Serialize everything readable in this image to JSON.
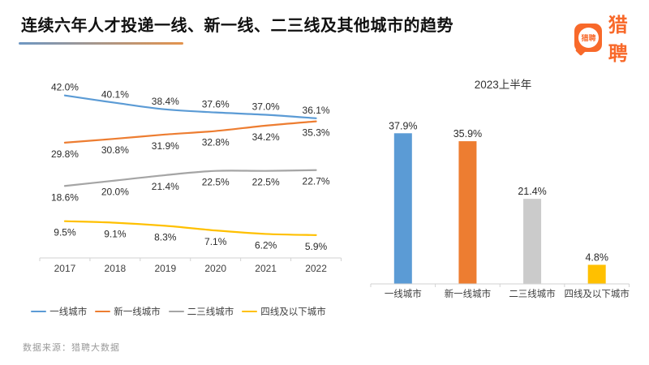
{
  "header": {
    "title": "连续六年人才投递一线、新一线、二三线及其他城市的趋势",
    "underline_gradient": [
      "#6E97C3",
      "#E4944D"
    ],
    "logo": {
      "badge_text": "猎聘",
      "wordmark": "猎聘",
      "brand_color": "#F8692A"
    }
  },
  "chart_data": [
    {
      "type": "line",
      "title": "",
      "xlabel": "",
      "ylabel": "",
      "unit": "%",
      "categories": [
        "2017",
        "2018",
        "2019",
        "2020",
        "2021",
        "2022"
      ],
      "series": [
        {
          "name": "一线城市",
          "color": "#5B9BD5",
          "values": [
            42.0,
            40.1,
            38.4,
            37.6,
            37.0,
            36.1
          ],
          "label_position": "above"
        },
        {
          "name": "新一线城市",
          "color": "#ED7D31",
          "values": [
            29.8,
            30.8,
            31.9,
            32.8,
            34.2,
            35.3
          ],
          "label_position": "below"
        },
        {
          "name": "二三线城市",
          "color": "#A5A5A5",
          "values": [
            18.6,
            20.0,
            21.4,
            22.5,
            22.5,
            22.7
          ],
          "label_position": "below"
        },
        {
          "name": "四线及以下城市",
          "color": "#FFC000",
          "values": [
            9.5,
            9.1,
            8.3,
            7.1,
            6.2,
            5.9
          ],
          "label_position": "below"
        }
      ],
      "data_labels": true,
      "grid": false,
      "legend_position": "bottom",
      "ylim": [
        0,
        45
      ],
      "axis_color": "#D2D2D2",
      "label_color": "#2b2b2b",
      "tick_label_color": "#404040"
    },
    {
      "type": "bar",
      "title": "2023上半年",
      "xlabel": "",
      "ylabel": "",
      "unit": "%",
      "categories": [
        "一线城市",
        "新一线城市",
        "二三线城市",
        "四线及以下城市"
      ],
      "values": [
        37.9,
        35.9,
        21.4,
        4.8
      ],
      "colors": [
        "#5B9BD5",
        "#ED7D31",
        "#CBCBCB",
        "#FFC000"
      ],
      "data_labels": true,
      "grid": false,
      "ylim": [
        0,
        45
      ],
      "axis_color": "#D2D2D2",
      "label_color": "#2b2b2b",
      "tick_label_color": "#404040"
    }
  ],
  "footer": {
    "source_note": "数据来源：猎聘大数据"
  }
}
